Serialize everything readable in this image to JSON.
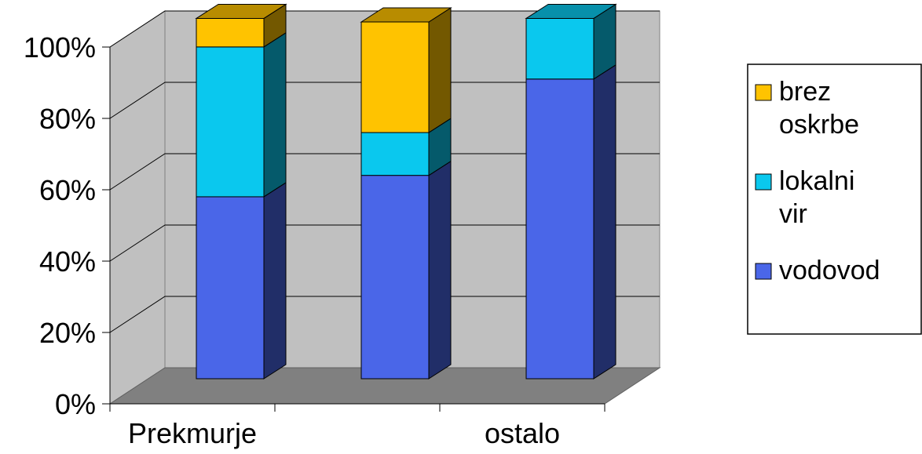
{
  "chart_data": {
    "type": "bar",
    "stacked": true,
    "percent_stacked": true,
    "three_d": true,
    "categories": [
      "Prekmurje",
      "",
      "ostalo"
    ],
    "series": [
      {
        "name": "vodovod",
        "values": [
          51,
          57,
          84
        ],
        "color": "#4A66E8"
      },
      {
        "name": "lokalni vir",
        "values": [
          42,
          12,
          17
        ],
        "color": "#0AC8EE"
      },
      {
        "name": "brez oskrbe",
        "values": [
          8,
          31,
          0
        ],
        "color": "#FFC300"
      }
    ],
    "ylim": [
      0,
      100
    ],
    "y_ticks": [
      "0%",
      "20%",
      "40%",
      "60%",
      "80%",
      "100%"
    ],
    "grid": true,
    "legend": {
      "position": "right",
      "entries": [
        {
          "name": "brez oskrbe",
          "lines": [
            "brez",
            "oskrbe"
          ],
          "color": "#FFC300"
        },
        {
          "name": "lokalni vir",
          "lines": [
            "lokalni",
            "vir"
          ],
          "color": "#0AC8EE"
        },
        {
          "name": "vodovod",
          "lines": [
            "vodovod"
          ],
          "color": "#4A66E8"
        }
      ]
    },
    "colors": {
      "wall": "#C0C0C0",
      "floor": "#808080",
      "gridline": "#000000"
    }
  }
}
